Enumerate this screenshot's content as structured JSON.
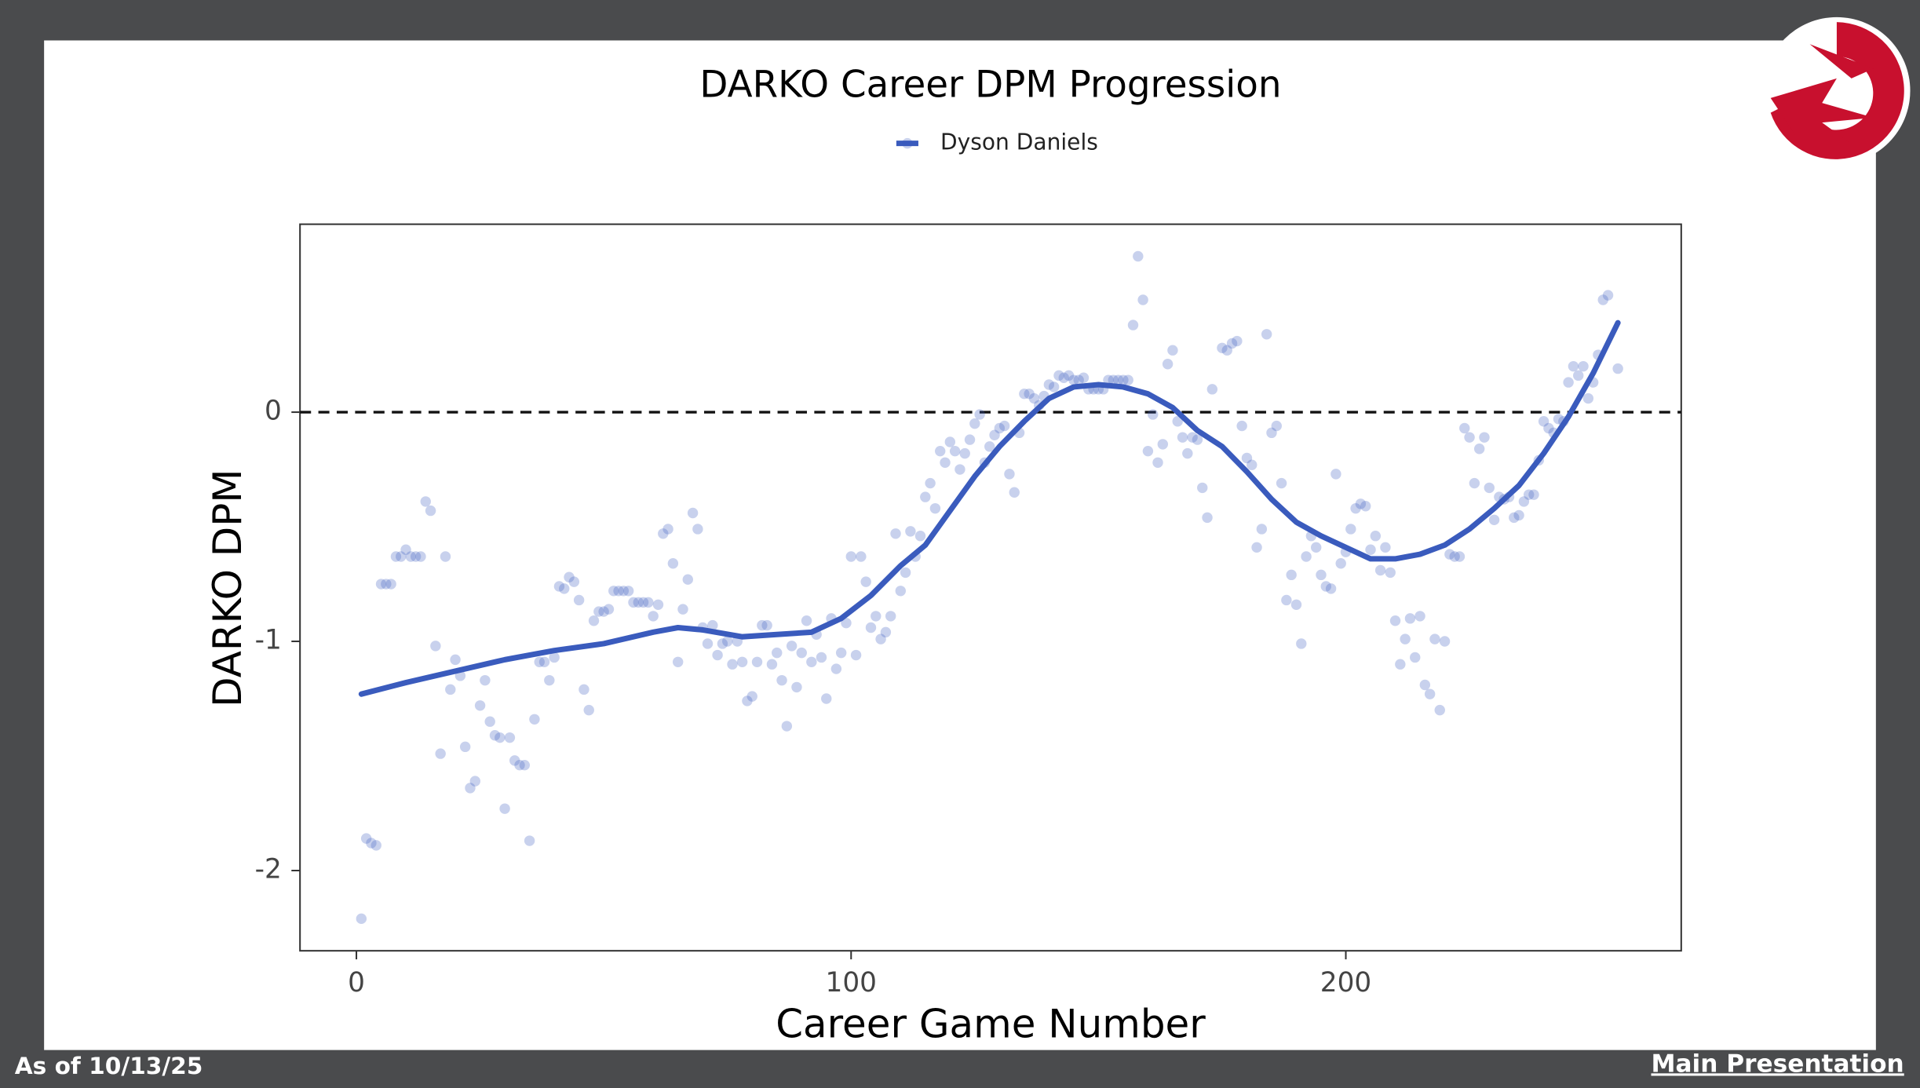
{
  "chart_data": {
    "type": "scatter",
    "title": "DARKO Career DPM Progression",
    "xlabel": "Career Game Number",
    "ylabel": "DARKO DPM",
    "legend": "top",
    "xlim": [
      -11.4,
      267.8
    ],
    "ylim": [
      -2.35,
      0.82
    ],
    "xticks": [
      0,
      100,
      200
    ],
    "yticks": [
      -2,
      -1,
      0
    ],
    "reference_line": 0,
    "series": [
      {
        "name": "Dyson Daniels",
        "color": "#3a5bbd",
        "x": [
          1,
          2,
          3,
          4,
          5,
          6,
          7,
          8,
          9,
          10,
          11,
          12,
          13,
          14,
          15,
          16,
          17,
          18,
          19,
          20,
          21,
          22,
          23,
          24,
          25,
          26,
          27,
          28,
          29,
          30,
          31,
          32,
          33,
          34,
          35,
          36,
          37,
          38,
          39,
          40,
          41,
          42,
          43,
          44,
          45,
          46,
          47,
          48,
          49,
          50,
          51,
          52,
          53,
          54,
          55,
          56,
          57,
          58,
          59,
          60,
          61,
          62,
          63,
          64,
          65,
          66,
          67,
          68,
          69,
          70,
          71,
          72,
          73,
          74,
          75,
          76,
          77,
          78,
          79,
          80,
          81,
          82,
          83,
          84,
          85,
          86,
          87,
          88,
          89,
          90,
          91,
          92,
          93,
          94,
          95,
          96,
          97,
          98,
          99,
          100,
          101,
          102,
          103,
          104,
          105,
          106,
          107,
          108,
          109,
          110,
          111,
          112,
          113,
          114,
          115,
          116,
          117,
          118,
          119,
          120,
          121,
          122,
          123,
          124,
          125,
          126,
          127,
          128,
          129,
          130,
          131,
          132,
          133,
          134,
          135,
          136,
          137,
          138,
          139,
          140,
          141,
          142,
          143,
          144,
          145,
          146,
          147,
          148,
          149,
          150,
          151,
          152,
          153,
          154,
          155,
          156,
          157,
          158,
          159,
          160,
          161,
          162,
          163,
          164,
          165,
          166,
          167,
          168,
          169,
          170,
          171,
          172,
          173,
          175,
          176,
          177,
          178,
          179,
          180,
          181,
          182,
          183,
          184,
          185,
          186,
          187,
          188,
          189,
          190,
          191,
          192,
          193,
          194,
          195,
          196,
          197,
          198,
          199,
          200,
          201,
          202,
          203,
          204,
          205,
          206,
          207,
          208,
          209,
          210,
          211,
          212,
          213,
          214,
          215,
          216,
          217,
          218,
          219,
          220,
          221,
          222,
          223,
          224,
          225,
          226,
          227,
          228,
          229,
          230,
          231,
          232,
          233,
          234,
          235,
          236,
          237,
          238,
          239,
          240,
          241,
          242,
          243,
          244,
          245,
          246,
          247,
          248,
          249,
          250,
          251,
          252,
          253,
          255
        ],
        "values": [
          -2.21,
          -1.86,
          -1.88,
          -1.89,
          -0.75,
          -0.75,
          -0.75,
          -0.63,
          -0.63,
          -0.6,
          -0.63,
          -0.63,
          -0.63,
          -0.39,
          -0.43,
          -1.02,
          -1.49,
          -0.63,
          -1.21,
          -1.08,
          -1.15,
          -1.46,
          -1.64,
          -1.61,
          -1.28,
          -1.17,
          -1.35,
          -1.41,
          -1.42,
          -1.73,
          -1.42,
          -1.52,
          -1.54,
          -1.54,
          -1.87,
          -1.34,
          -1.09,
          -1.09,
          -1.17,
          -1.07,
          -0.76,
          -0.77,
          -0.72,
          -0.74,
          -0.82,
          -1.21,
          -1.3,
          -0.91,
          -0.87,
          -0.87,
          -0.86,
          -0.78,
          -0.78,
          -0.78,
          -0.78,
          -0.83,
          -0.83,
          -0.83,
          -0.83,
          -0.89,
          -0.84,
          -0.53,
          -0.51,
          -0.66,
          -1.09,
          -0.86,
          -0.73,
          -0.44,
          -0.51,
          -0.94,
          -1.01,
          -0.93,
          -1.06,
          -1.01,
          -1.0,
          -1.1,
          -1.0,
          -1.09,
          -1.26,
          -1.24,
          -1.09,
          -0.93,
          -0.93,
          -1.1,
          -1.05,
          -1.17,
          -1.37,
          -1.02,
          -1.2,
          -1.05,
          -0.91,
          -1.09,
          -0.97,
          -1.07,
          -1.25,
          -0.9,
          -1.12,
          -1.05,
          -0.92,
          -0.63,
          -1.06,
          -0.63,
          -0.74,
          -0.94,
          -0.89,
          -0.99,
          -0.96,
          -0.89,
          -0.53,
          -0.78,
          -0.7,
          -0.52,
          -0.63,
          -0.54,
          -0.37,
          -0.31,
          -0.42,
          -0.17,
          -0.22,
          -0.13,
          -0.17,
          -0.25,
          -0.18,
          -0.12,
          -0.05,
          -0.01,
          -0.22,
          -0.15,
          -0.1,
          -0.07,
          -0.06,
          -0.27,
          -0.35,
          -0.09,
          0.08,
          0.08,
          0.06,
          0.03,
          0.07,
          0.12,
          0.11,
          0.16,
          0.15,
          0.16,
          0.14,
          0.14,
          0.15,
          0.1,
          0.1,
          0.1,
          0.1,
          0.14,
          0.14,
          0.14,
          0.14,
          0.14,
          0.38,
          0.68,
          0.49,
          -0.17,
          -0.01,
          -0.22,
          -0.14,
          0.21,
          0.27,
          -0.04,
          -0.11,
          -0.18,
          -0.11,
          -0.12,
          -0.33,
          -0.46,
          0.1,
          0.28,
          0.27,
          0.3,
          0.31,
          -0.06,
          -0.2,
          -0.23,
          -0.59,
          -0.51,
          0.34,
          -0.09,
          -0.06,
          -0.31,
          -0.82,
          -0.71,
          -0.84,
          -1.01,
          -0.63,
          -0.54,
          -0.59,
          -0.71,
          -0.76,
          -0.77,
          -0.27,
          -0.66,
          -0.61,
          -0.51,
          -0.42,
          -0.4,
          -0.41,
          -0.6,
          -0.54,
          -0.69,
          -0.59,
          -0.7,
          -0.91,
          -1.1,
          -0.99,
          -0.9,
          -1.07,
          -0.89,
          -1.19,
          -1.23,
          -0.99,
          -1.3,
          -1.0,
          -0.62,
          -0.63,
          -0.63,
          -0.07,
          -0.11,
          -0.31,
          -0.16,
          -0.11,
          -0.33,
          -0.47,
          -0.37,
          -0.38,
          -0.37,
          -0.46,
          -0.45,
          -0.39,
          -0.36,
          -0.36,
          -0.21,
          -0.04,
          -0.07,
          -0.09,
          -0.03,
          -0.04,
          0.13,
          0.2,
          0.16,
          0.2,
          0.06,
          0.13,
          0.25,
          0.49,
          0.51,
          0.19
        ],
        "smooth_x": [
          1,
          10,
          20,
          30,
          40,
          50,
          60,
          65,
          70,
          78,
          85,
          92,
          98,
          104,
          110,
          115,
          120,
          125,
          130,
          135,
          140,
          145,
          150,
          155,
          160,
          165,
          170,
          175,
          180,
          185,
          190,
          195,
          200,
          205,
          210,
          215,
          220,
          225,
          230,
          235,
          240,
          245,
          250,
          255
        ],
        "smooth_values": [
          -1.23,
          -1.18,
          -1.13,
          -1.08,
          -1.04,
          -1.01,
          -0.96,
          -0.94,
          -0.95,
          -0.98,
          -0.97,
          -0.96,
          -0.9,
          -0.8,
          -0.67,
          -0.58,
          -0.43,
          -0.28,
          -0.15,
          -0.04,
          0.06,
          0.11,
          0.12,
          0.11,
          0.08,
          0.02,
          -0.08,
          -0.15,
          -0.26,
          -0.38,
          -0.48,
          -0.54,
          -0.59,
          -0.64,
          -0.64,
          -0.62,
          -0.58,
          -0.51,
          -0.42,
          -0.32,
          -0.18,
          -0.02,
          0.17,
          0.39
        ]
      }
    ]
  },
  "footer": {
    "date": "As of 10/13/25",
    "link": "Main Presentation"
  }
}
